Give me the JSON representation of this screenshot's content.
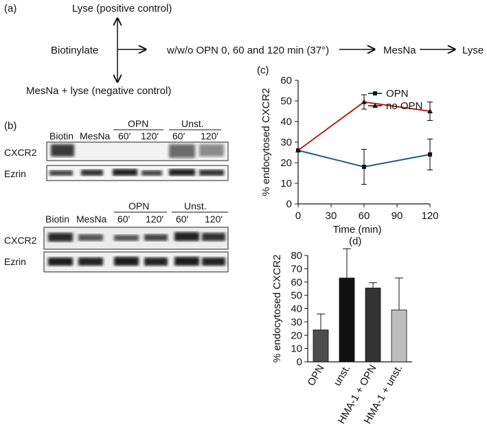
{
  "panel_a": {
    "label": "(a)",
    "positive_control": "Lyse (positive control)",
    "biotinylate": "Biotinylate",
    "negative_control": "MesNa + lyse (negative control)",
    "treatment": "w/w/o OPN 0, 60 and 120 min (37°)",
    "mesna": "MesNa",
    "lyse": "Lyse"
  },
  "panel_b": {
    "label": "(b)",
    "blot1": {
      "columns": [
        "Biotin",
        "MesNa",
        "60′",
        "120′",
        "60′",
        "120′"
      ],
      "group_opn": "OPN",
      "group_unst": "Unst.",
      "rows": [
        "CXCR2",
        "Ezrin"
      ]
    },
    "blot2": {
      "columns": [
        "Biotin",
        "MesNa",
        "60′",
        "120′",
        "60′",
        "120′"
      ],
      "group_opn": "OPN",
      "group_unst": "Unst.",
      "rows": [
        "CXCR2",
        "Ezrin"
      ]
    }
  },
  "panel_c": {
    "label": "(c)"
  },
  "panel_d": {
    "label": "(d)"
  },
  "chart_data": [
    {
      "type": "line",
      "xlabel": "Time (min)",
      "ylabel": "% endocytosed CXCR2",
      "x": [
        0,
        60,
        120
      ],
      "xticks": [
        0,
        30,
        60,
        90,
        120
      ],
      "yticks": [
        0,
        10,
        20,
        30,
        40,
        50,
        60
      ],
      "xlim": [
        0,
        120
      ],
      "ylim": [
        0,
        60
      ],
      "legend_position": "top",
      "series": [
        {
          "name": "OPN",
          "values": [
            26,
            18,
            24
          ],
          "errors": [
            0,
            8.5,
            7.5
          ],
          "color": "#1f5c7a",
          "marker": "square"
        },
        {
          "name": "no OPN",
          "values": [
            26,
            49.5,
            45
          ],
          "errors": [
            0,
            3.5,
            4.5
          ],
          "color": "#b41e1e",
          "marker": "triangle"
        }
      ]
    },
    {
      "type": "bar",
      "ylabel": "% endocytosed CXCR2",
      "categories": [
        "OPN",
        "unst.",
        "HMA-1 + OPN",
        "HMA-1 + unst."
      ],
      "values": [
        24,
        63,
        55.5,
        39
      ],
      "errors": [
        12,
        22,
        4,
        24
      ],
      "colors": [
        "#4d4d4d",
        "#111111",
        "#333333",
        "#bdbdbd"
      ],
      "yticks": [
        0,
        10,
        20,
        30,
        40,
        50,
        60,
        70,
        80
      ],
      "ylim": [
        0,
        80
      ]
    }
  ]
}
